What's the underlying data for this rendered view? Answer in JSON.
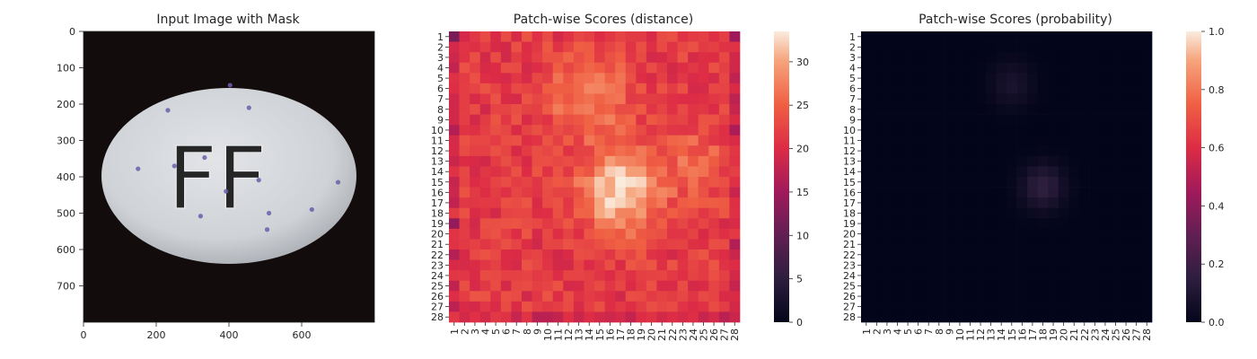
{
  "chart_data": [
    {
      "type": "image",
      "title": "Input Image with Mask",
      "xlim": [
        0,
        800
      ],
      "ylim": [
        800,
        0
      ],
      "x_ticks": [
        0,
        200,
        400,
        600
      ],
      "y_ticks": [
        0,
        100,
        200,
        300,
        400,
        500,
        600,
        700
      ],
      "content": {
        "background": "#120c0c",
        "object": "white oval tablet embossed with letters",
        "embossed_text": "FF",
        "object_color": "#d6d8dc",
        "mask_color": "#6a5fa8",
        "center": [
          400,
          398
        ],
        "radii": [
          282,
          240
        ]
      }
    },
    {
      "type": "heatmap",
      "title": "Patch-wise Scores (distance)",
      "grid_size": 28,
      "x_ticks": [
        "1",
        "2",
        "3",
        "4",
        "5",
        "6",
        "7",
        "8",
        "9",
        "10",
        "11",
        "12",
        "13",
        "14",
        "15",
        "16",
        "17",
        "18",
        "19",
        "20",
        "21",
        "22",
        "23",
        "24",
        "25",
        "26",
        "27",
        "28"
      ],
      "y_ticks": [
        "1",
        "2",
        "3",
        "4",
        "5",
        "6",
        "7",
        "8",
        "9",
        "10",
        "11",
        "12",
        "13",
        "14",
        "15",
        "16",
        "17",
        "18",
        "19",
        "20",
        "21",
        "22",
        "23",
        "24",
        "25",
        "26",
        "27",
        "28"
      ],
      "colorbar": {
        "colormap": "rocket",
        "min": 0,
        "max": 33.5,
        "ticks": [
          0,
          5,
          10,
          15,
          20,
          25,
          30
        ]
      },
      "value_summary": {
        "base": 21.5,
        "hotspots": [
          {
            "row": 16,
            "col": 17,
            "value": 33
          },
          {
            "row": 7,
            "col": 14,
            "value": 28
          },
          {
            "row": 13,
            "col": 24,
            "value": 25
          }
        ],
        "low_cells": [
          {
            "row": 1,
            "col": 1,
            "value": 12
          },
          {
            "row": 19,
            "col": 1,
            "value": 14
          },
          {
            "row": 10,
            "col": 28,
            "value": 16
          },
          {
            "row": 1,
            "col": 28,
            "value": 15
          }
        ]
      }
    },
    {
      "type": "heatmap",
      "title": "Patch-wise Scores (probability)",
      "grid_size": 28,
      "x_ticks": [
        "1",
        "2",
        "3",
        "4",
        "5",
        "6",
        "7",
        "8",
        "9",
        "10",
        "11",
        "12",
        "13",
        "14",
        "15",
        "16",
        "17",
        "18",
        "19",
        "20",
        "21",
        "22",
        "23",
        "24",
        "25",
        "26",
        "27",
        "28"
      ],
      "y_ticks": [
        "1",
        "2",
        "3",
        "4",
        "5",
        "6",
        "7",
        "8",
        "9",
        "10",
        "11",
        "12",
        "13",
        "14",
        "15",
        "16",
        "17",
        "18",
        "19",
        "20",
        "21",
        "22",
        "23",
        "24",
        "25",
        "26",
        "27",
        "28"
      ],
      "colorbar": {
        "colormap": "rocket",
        "min": 0,
        "max": 1,
        "ticks": [
          "0.0",
          "0.2",
          "0.4",
          "0.6",
          "0.8",
          "1.0"
        ]
      },
      "value_summary": {
        "base": 0.0,
        "hotspots": [
          {
            "row": 15,
            "col": 18,
            "value": 0.09
          },
          {
            "row": 16,
            "col": 18,
            "value": 0.08
          },
          {
            "row": 5,
            "col": 15,
            "value": 0.04
          },
          {
            "row": 6,
            "col": 15,
            "value": 0.05
          }
        ]
      }
    }
  ]
}
